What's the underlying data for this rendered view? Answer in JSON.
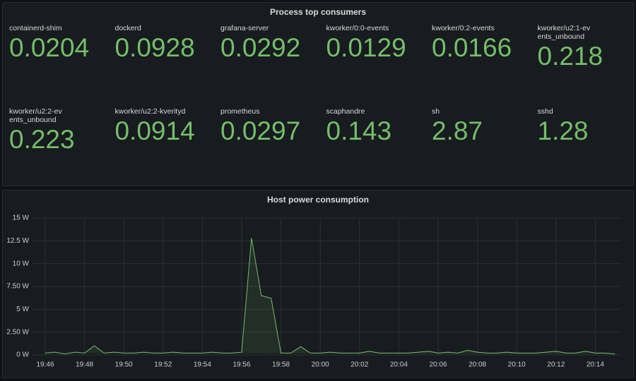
{
  "panels": [
    {
      "title": "Process top consumers",
      "stats": [
        {
          "name": "containerd-shim",
          "value": 0.0204
        },
        {
          "name": "dockerd",
          "value": 0.0928
        },
        {
          "name": "grafana-server",
          "value": 0.0292
        },
        {
          "name": "kworker/0:0-events",
          "value": 0.0129
        },
        {
          "name": "kworker/0:2-events",
          "value": 0.0166
        },
        {
          "name": "kworker/u2:1-events_unbound",
          "value": 0.218
        },
        {
          "name": "kworker/u2:2-events_unbound",
          "value": 0.223
        },
        {
          "name": "kworker/u2:2-kverityd",
          "value": 0.0914
        },
        {
          "name": "prometheus",
          "value": 0.0297
        },
        {
          "name": "scaphandre",
          "value": 0.143
        },
        {
          "name": "sh",
          "value": 2.87
        },
        {
          "name": "sshd",
          "value": 1.28
        }
      ]
    }
  ],
  "chart_data": {
    "type": "line",
    "title": "Host power consumption",
    "categories": [
      "19:46",
      null,
      null,
      null,
      "19:48",
      null,
      null,
      null,
      "19:50",
      null,
      null,
      null,
      "19:52",
      null,
      null,
      null,
      "19:54",
      null,
      null,
      null,
      "19:56",
      null,
      null,
      null,
      "19:58",
      null,
      null,
      null,
      "20:00",
      null,
      null,
      null,
      "20:02",
      null,
      null,
      null,
      "20:04",
      null,
      null,
      null,
      "20:06",
      null,
      null,
      null,
      "20:08",
      null,
      null,
      null,
      "20:10",
      null,
      null,
      null,
      "20:12",
      null,
      null,
      null,
      "20:14",
      null,
      null
    ],
    "series": [
      {
        "name": "Host power consumption",
        "color": "#73bf69",
        "values": [
          0.2,
          0.3,
          0.1,
          0.3,
          0.2,
          1.0,
          0.2,
          0.3,
          0.2,
          0.2,
          0.3,
          0.2,
          0.2,
          0.3,
          0.2,
          0.2,
          0.2,
          0.3,
          0.2,
          0.2,
          0.3,
          12.8,
          6.5,
          6.2,
          0.2,
          0.2,
          0.9,
          0.2,
          0.2,
          0.3,
          0.2,
          0.2,
          0.2,
          0.4,
          0.2,
          0.2,
          0.2,
          0.2,
          0.3,
          0.4,
          0.2,
          0.3,
          0.2,
          0.5,
          0.3,
          0.2,
          0.2,
          0.3,
          0.2,
          0.2,
          0.2,
          0.3,
          0.4,
          0.2,
          0.2,
          0.4,
          0.2,
          0.2,
          0.1
        ]
      }
    ],
    "ylim": [
      0,
      15
    ],
    "yticks": [
      {
        "value": 0,
        "label": "0 W"
      },
      {
        "value": 2.5,
        "label": "2.50 W"
      },
      {
        "value": 5,
        "label": "5 W"
      },
      {
        "value": 7.5,
        "label": "7.50 W"
      },
      {
        "value": 10,
        "label": "10 W"
      },
      {
        "value": 12.5,
        "label": "12.5 W"
      },
      {
        "value": 15,
        "label": "15 W"
      }
    ],
    "grid": true
  }
}
